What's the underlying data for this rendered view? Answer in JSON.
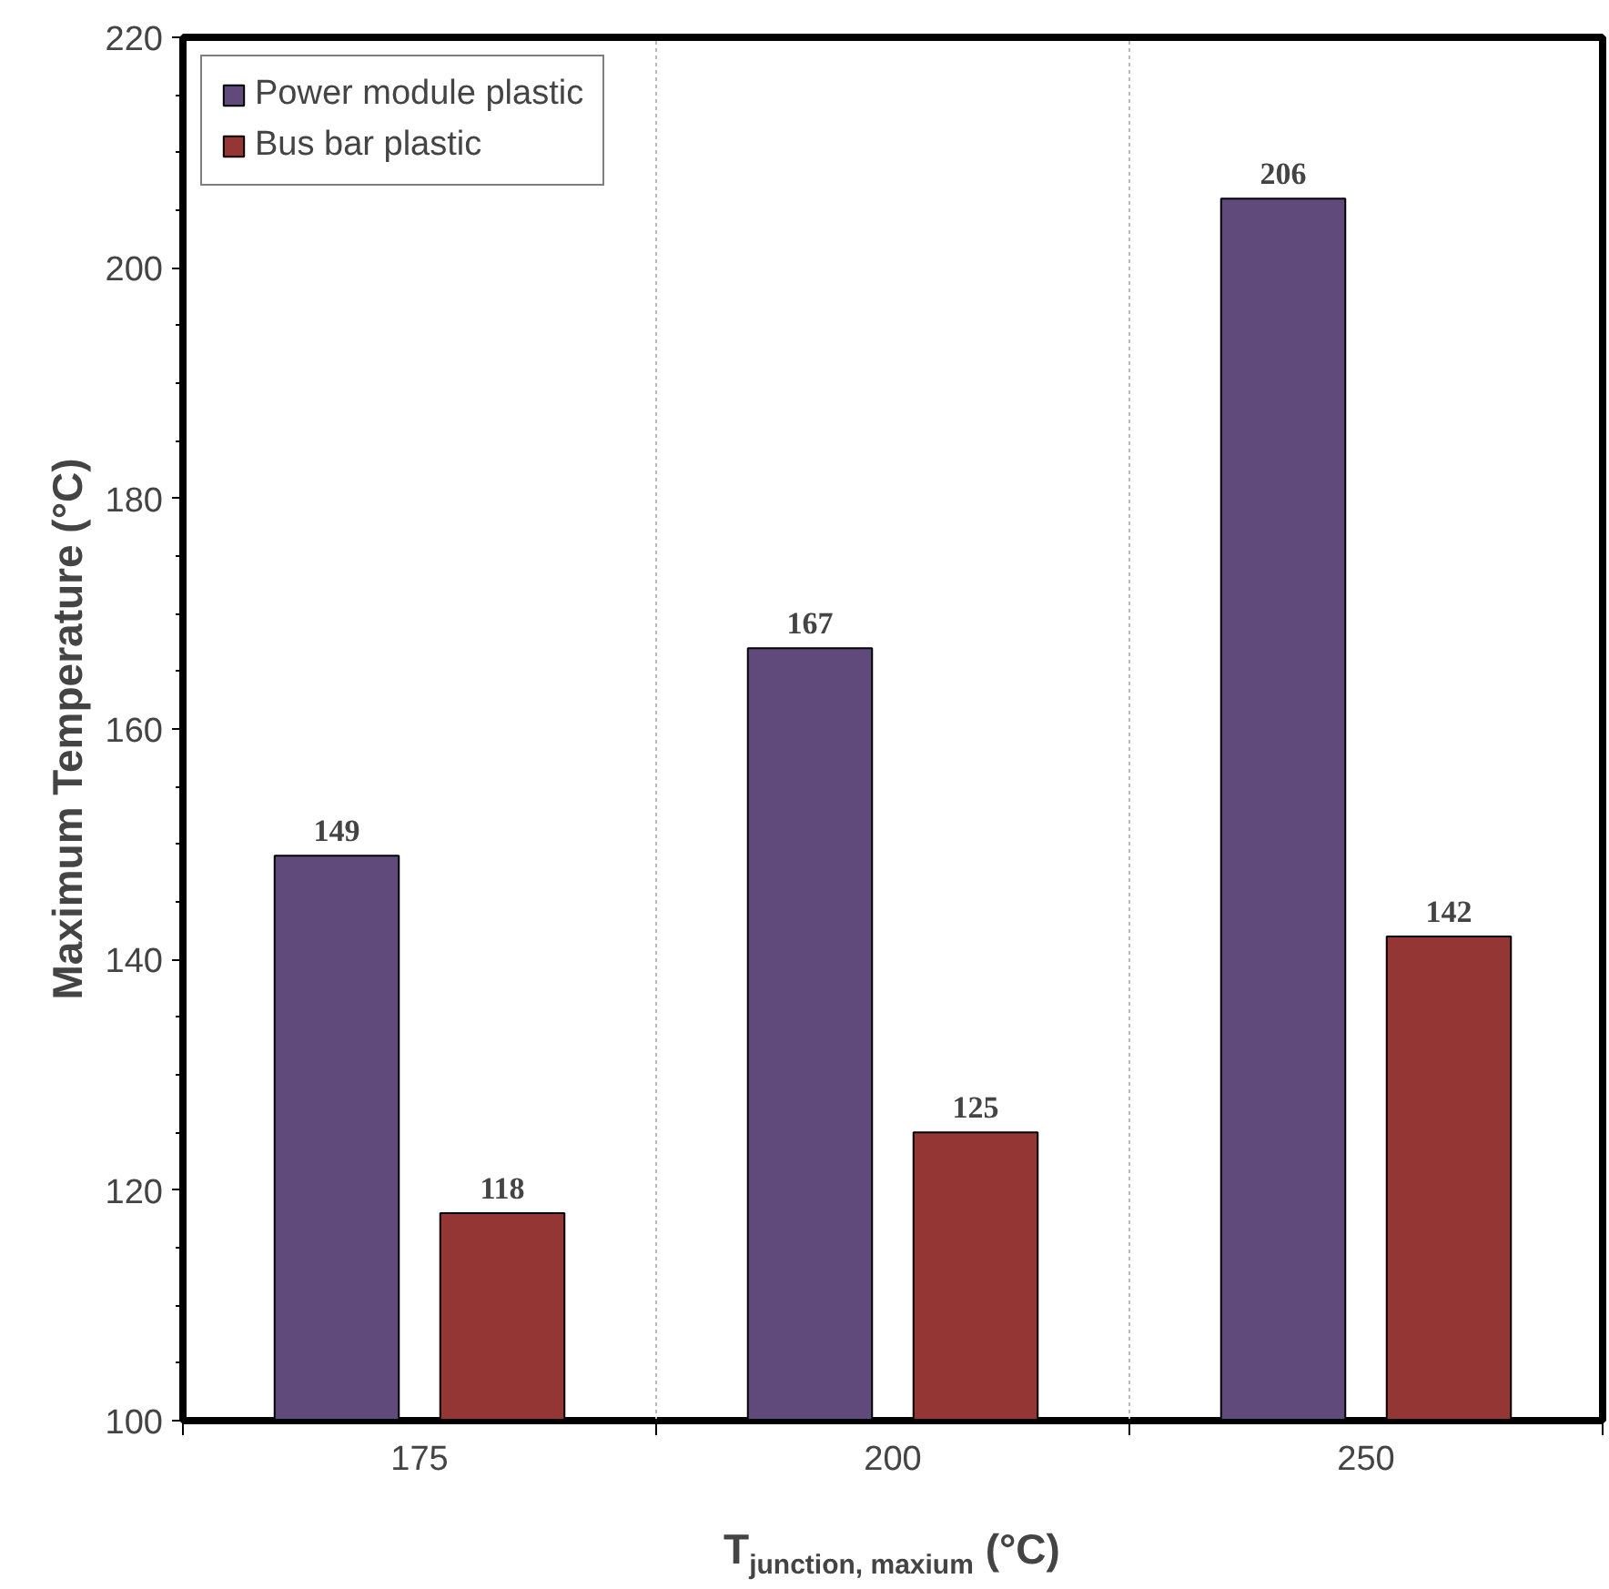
{
  "chart_data": {
    "type": "bar",
    "xlabel": "T$_{junction, maxium}$ (°C)",
    "ylabel": "Maximum Temperature (°C)",
    "categories": [
      "175",
      "200",
      "250"
    ],
    "series": [
      {
        "name": "Power module plastic",
        "color": "#604a7b",
        "values": [
          149,
          167,
          206
        ]
      },
      {
        "name": "Bus bar plastic",
        "color": "#943634",
        "values": [
          118,
          125,
          142
        ]
      }
    ],
    "ylim": [
      100,
      220
    ],
    "yticks": [
      100,
      120,
      140,
      160,
      180,
      200,
      220
    ],
    "grid": "x",
    "legend": "top left",
    "data_labels": true
  }
}
